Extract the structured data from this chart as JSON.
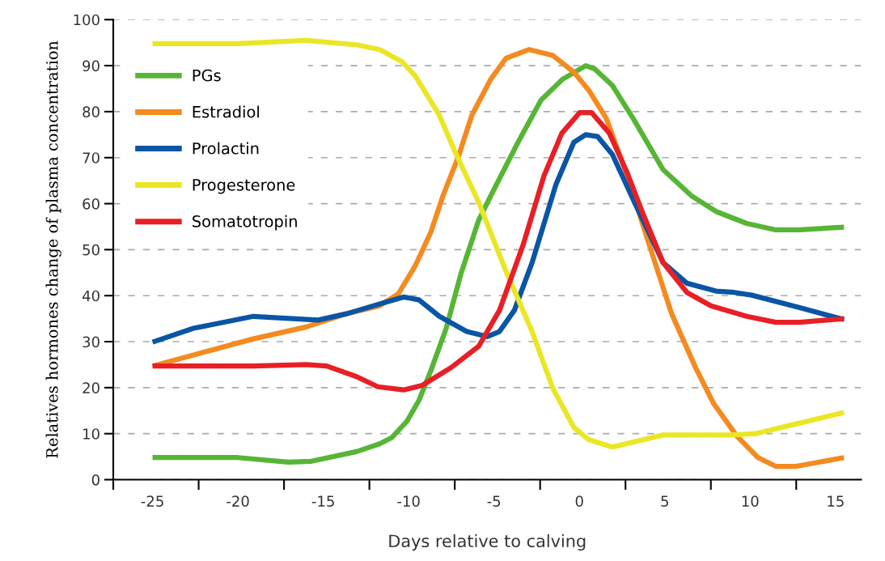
{
  "chart_data": {
    "type": "line",
    "xlabel": "Days relative to calving",
    "ylabel": "Relatives hormones change of plasma concentration",
    "xlim": [
      -27.3,
      16.5
    ],
    "ylim": [
      0,
      100
    ],
    "xticks": [
      {
        "value": -27.3,
        "label": null
      },
      -25,
      {
        "value": -22.3,
        "label": null
      },
      -20,
      {
        "value": -17.3,
        "label": null
      },
      -15,
      {
        "value": -12.3,
        "label": null
      },
      -10,
      {
        "value": -7.3,
        "label": null
      },
      -5,
      {
        "value": -2.3,
        "label": null
      },
      0,
      {
        "value": 2.7,
        "label": null
      },
      5,
      {
        "value": 7.7,
        "label": null
      },
      10,
      {
        "value": 12.7,
        "label": null
      },
      15
    ],
    "yticks": [
      0,
      10,
      20,
      30,
      40,
      50,
      60,
      70,
      80,
      90,
      100
    ],
    "grid": "y",
    "legend": "top left",
    "marker": "none",
    "line_style": "solid",
    "series": [
      {
        "name": "PGs",
        "color": "#57b535",
        "x": [
          -25,
          -20,
          -17.05,
          -15.7,
          -13.05,
          -11.7,
          -11,
          -10.1,
          -9.4,
          -8.7,
          -7.8,
          -6.95,
          -5.9,
          -5.03,
          -3.6,
          -2.25,
          -1.0,
          0.37,
          0.89,
          1.93,
          3.15,
          4.9,
          6.6,
          8.0,
          9.8,
          11.5,
          12.9,
          15.5
        ],
        "values": [
          4.8,
          4.8,
          3.8,
          4.0,
          6.1,
          7.8,
          9.1,
          12.7,
          17.2,
          23.7,
          32.9,
          44.6,
          56.4,
          62.9,
          73.3,
          82.5,
          87,
          90,
          89.3,
          85.7,
          78.5,
          67.4,
          61.6,
          58.3,
          55.7,
          54.3,
          54.3,
          54.9
        ]
      },
      {
        "name": "Estradiol",
        "color": "#f48a20",
        "x": [
          -25,
          -19.1,
          -16,
          -13.6,
          -11.7,
          -10.6,
          -9.6,
          -8.7,
          -8.0,
          -7.1,
          -6.3,
          -5.2,
          -4.3,
          -2.94,
          -1.55,
          -0.33,
          0.54,
          1.58,
          2.8,
          4.2,
          5.4,
          6.8,
          7.85,
          9.24,
          10.46,
          11.5,
          12.7,
          15.5
        ],
        "values": [
          24.7,
          30.6,
          33.2,
          36.1,
          37.8,
          40.4,
          46.6,
          53.8,
          61.6,
          70.1,
          79.2,
          87,
          91.6,
          93.5,
          92.2,
          88.6,
          84.7,
          78.5,
          66.1,
          49.8,
          36.1,
          24.4,
          16.6,
          9.4,
          4.8,
          2.9,
          2.9,
          4.8
        ]
      },
      {
        "name": "Prolactin",
        "color": "#0a55a5",
        "x": [
          -25,
          -22.6,
          -19.1,
          -15.3,
          -13.6,
          -11.5,
          -10.3,
          -9.4,
          -8.2,
          -6.6,
          -5.4,
          -4.68,
          -3.81,
          -2.77,
          -1.37,
          -0.33,
          0.37,
          1.06,
          1.93,
          3.15,
          4.9,
          6.3,
          8.0,
          9.07,
          10.1,
          12.9,
          15.5
        ],
        "values": [
          29.9,
          32.9,
          35.5,
          34.7,
          36.1,
          38.4,
          39.7,
          39.1,
          35.5,
          32.2,
          31.1,
          32.2,
          36.8,
          47.2,
          64.2,
          73.3,
          75,
          74.6,
          70.7,
          60.9,
          47.2,
          42.7,
          41.0,
          40.7,
          40.1,
          37.4,
          34.8
        ]
      },
      {
        "name": "Progesterone",
        "color": "#eae625",
        "x": [
          -25,
          -20,
          -16,
          -13,
          -11.7,
          -10.4,
          -9.6,
          -8.2,
          -7.3,
          -5.9,
          -4.3,
          -2.77,
          -1.55,
          -0.33,
          0.54,
          1.93,
          4.89,
          8.9,
          10.3,
          12.9,
          15.5
        ],
        "values": [
          94.8,
          94.8,
          95.5,
          94.5,
          93.5,
          90.9,
          87.7,
          79.2,
          71.4,
          60.3,
          45.3,
          32.2,
          19.8,
          11.4,
          8.7,
          7.1,
          9.7,
          9.7,
          10,
          12.3,
          14.6
        ]
      },
      {
        "name": "Somatotropin",
        "color": "#e81f25",
        "x": [
          -25,
          -19.1,
          -16,
          -14.8,
          -13.05,
          -11.8,
          -10.3,
          -9.2,
          -7.5,
          -5.9,
          -4.68,
          -3.29,
          -2.07,
          -1.03,
          0.02,
          0.71,
          1.76,
          2.8,
          3.67,
          4.9,
          6.3,
          7.7,
          9.8,
          11.5,
          12.9,
          15.5
        ],
        "values": [
          24.7,
          24.7,
          25.0,
          24.7,
          22.4,
          20.2,
          19.5,
          20.5,
          24.4,
          29.0,
          36.8,
          51.1,
          66.1,
          75.3,
          79.8,
          79.8,
          75.3,
          66.7,
          58.3,
          47.2,
          40.7,
          37.8,
          35.5,
          34.2,
          34.2,
          35.0
        ]
      }
    ]
  }
}
